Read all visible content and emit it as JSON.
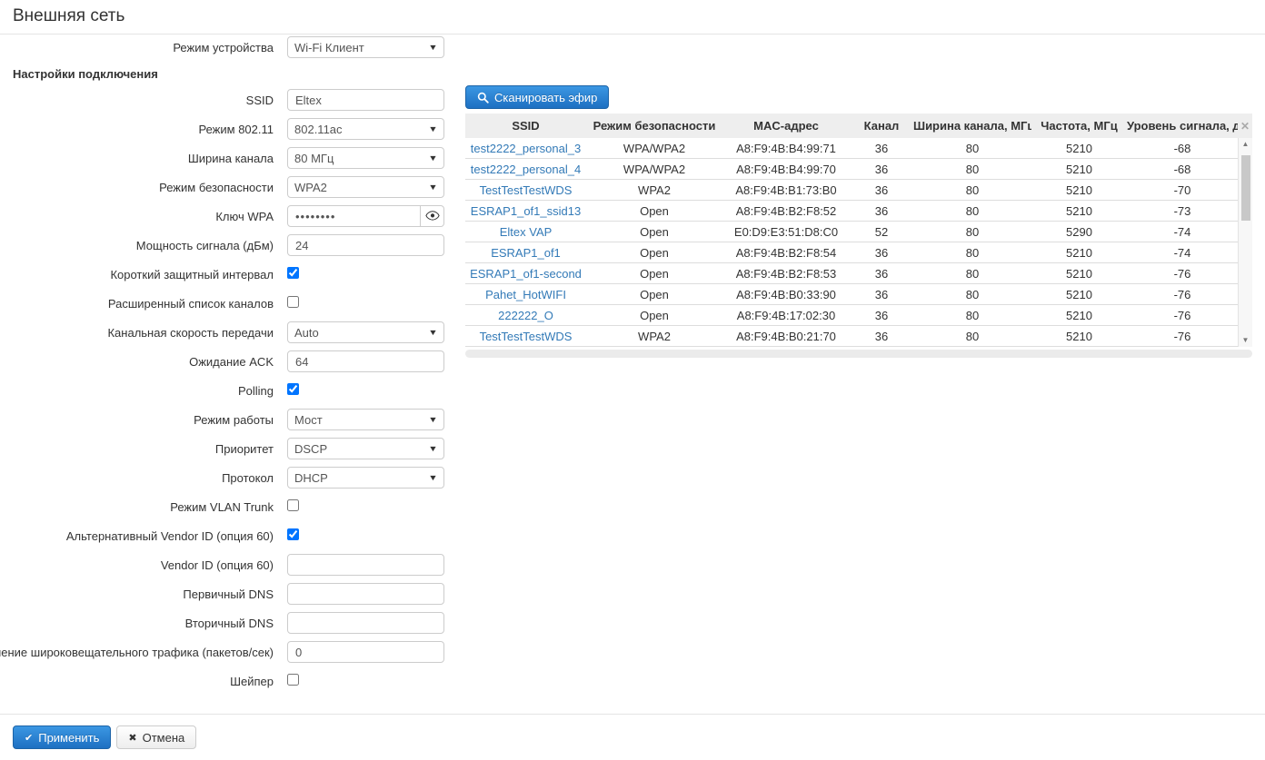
{
  "page_title": "Внешняя сеть",
  "form": {
    "rows": [
      {
        "type": "select",
        "name": "device-mode",
        "label": "Режим устройства",
        "value": "Wi-Fi Клиент"
      },
      {
        "type": "section",
        "label": "Настройки подключения"
      },
      {
        "type": "text",
        "name": "ssid",
        "label": "SSID",
        "value": "Eltex"
      },
      {
        "type": "select",
        "name": "mode-802-11",
        "label": "Режим 802.11",
        "value": "802.11ac"
      },
      {
        "type": "select",
        "name": "channel-width",
        "label": "Ширина канала",
        "value": "80 МГц"
      },
      {
        "type": "select",
        "name": "security-mode",
        "label": "Режим безопасности",
        "value": "WPA2"
      },
      {
        "type": "password",
        "name": "wpa-key",
        "label": "Ключ WPA",
        "value": "••••••••"
      },
      {
        "type": "text",
        "name": "signal-power",
        "label": "Мощность сигнала (дБм)",
        "value": "24"
      },
      {
        "type": "checkbox",
        "name": "short-guard-interval",
        "label": "Короткий защитный интервал",
        "checked": true
      },
      {
        "type": "checkbox",
        "name": "extended-channel-list",
        "label": "Расширенный список каналов",
        "checked": false
      },
      {
        "type": "select",
        "name": "channel-rate",
        "label": "Канальная скорость передачи",
        "value": "Auto"
      },
      {
        "type": "text",
        "name": "ack-timeout",
        "label": "Ожидание ACK",
        "value": "64"
      },
      {
        "type": "checkbox",
        "name": "polling",
        "label": "Polling",
        "checked": true
      },
      {
        "type": "select",
        "name": "work-mode",
        "label": "Режим работы",
        "value": "Мост"
      },
      {
        "type": "select",
        "name": "priority",
        "label": "Приоритет",
        "value": "DSCP"
      },
      {
        "type": "select",
        "name": "protocol",
        "label": "Протокол",
        "value": "DHCP"
      },
      {
        "type": "checkbox",
        "name": "vlan-trunk-mode",
        "label": "Режим VLAN Trunk",
        "checked": false
      },
      {
        "type": "checkbox",
        "name": "alt-vendor-id",
        "label": "Альтернативный Vendor ID (опция 60)",
        "checked": true
      },
      {
        "type": "text",
        "name": "vendor-id",
        "label": "Vendor ID (опция 60)",
        "value": ""
      },
      {
        "type": "text",
        "name": "primary-dns",
        "label": "Первичный DNS",
        "value": ""
      },
      {
        "type": "text",
        "name": "secondary-dns",
        "label": "Вторичный DNS",
        "value": ""
      },
      {
        "type": "text",
        "name": "broadcast-limit",
        "label": "Ограничение широковещательного трафика (пакетов/сек)",
        "value": "0"
      },
      {
        "type": "checkbox",
        "name": "shaper",
        "label": "Шейпер",
        "checked": false
      }
    ]
  },
  "scan": {
    "button_label": "Сканировать эфир",
    "table": {
      "columns": [
        "SSID",
        "Режим безопасности",
        "MAC-адрес",
        "Канал",
        "Ширина канала, МГц",
        "Частота, МГц",
        "Уровень сигнала, дБм"
      ],
      "rows": [
        [
          "test2222_personal_3",
          "WPA/WPA2",
          "A8:F9:4B:B4:99:71",
          "36",
          "80",
          "5210",
          "-68"
        ],
        [
          "test2222_personal_4",
          "WPA/WPA2",
          "A8:F9:4B:B4:99:70",
          "36",
          "80",
          "5210",
          "-68"
        ],
        [
          "TestTestTestWDS",
          "WPA2",
          "A8:F9:4B:B1:73:B0",
          "36",
          "80",
          "5210",
          "-70"
        ],
        [
          "ESRAP1_of1_ssid13",
          "Open",
          "A8:F9:4B:B2:F8:52",
          "36",
          "80",
          "5210",
          "-73"
        ],
        [
          "Eltex VAP",
          "Open",
          "E0:D9:E3:51:D8:C0",
          "52",
          "80",
          "5290",
          "-74"
        ],
        [
          "ESRAP1_of1",
          "Open",
          "A8:F9:4B:B2:F8:54",
          "36",
          "80",
          "5210",
          "-74"
        ],
        [
          "ESRAP1_of1-second",
          "Open",
          "A8:F9:4B:B2:F8:53",
          "36",
          "80",
          "5210",
          "-76"
        ],
        [
          "Pahet_HotWIFI",
          "Open",
          "A8:F9:4B:B0:33:90",
          "36",
          "80",
          "5210",
          "-76"
        ],
        [
          "222222_O",
          "Open",
          "A8:F9:4B:17:02:30",
          "36",
          "80",
          "5210",
          "-76"
        ],
        [
          "TestTestTestWDS",
          "WPA2",
          "A8:F9:4B:B0:21:70",
          "36",
          "80",
          "5210",
          "-76"
        ]
      ]
    }
  },
  "footer": {
    "apply_label": "Применить",
    "cancel_label": "Отмена"
  },
  "colors": {
    "primary": "#2173c8",
    "link": "#337ab7",
    "table_header_bg": "#eeeeee"
  }
}
